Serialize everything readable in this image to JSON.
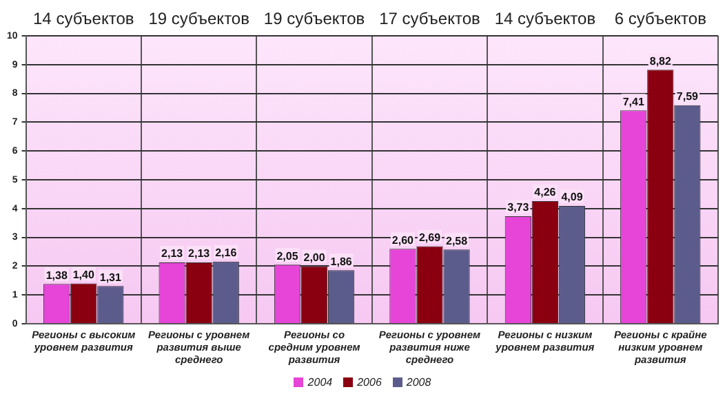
{
  "chart_data": {
    "type": "bar",
    "categories": [
      "Регионы с высоким уровнем развития",
      "Регионы с уровнем развития выше среднего",
      "Регионы со средним уровнем развития",
      "Регионы с уровнем развития ниже среднего",
      "Регионы с низким уровнем развития",
      "Регионы с крайне низким уровнем развития"
    ],
    "series": [
      {
        "name": "2004",
        "color": "#e645d8",
        "values": [
          1.38,
          2.13,
          2.05,
          2.6,
          3.73,
          7.41
        ],
        "value_labels": [
          "1,38",
          "2,13",
          "2,05",
          "2,60",
          "3,73",
          "7,41"
        ]
      },
      {
        "name": "2006",
        "color": "#8b0010",
        "values": [
          1.4,
          2.13,
          2.0,
          2.69,
          4.26,
          8.82
        ],
        "value_labels": [
          "1,40",
          "2,13",
          "2,00",
          "2,69",
          "4,26",
          "8,82"
        ]
      },
      {
        "name": "2008",
        "color": "#5c5c8c",
        "values": [
          1.31,
          2.16,
          1.86,
          2.58,
          4.09,
          7.59
        ],
        "value_labels": [
          "1,31",
          "2,16",
          "1,86",
          "2,58",
          "4,09",
          "7,59"
        ]
      }
    ],
    "annotations": [
      "14 субъектов",
      "19 субъектов",
      "19 субъектов",
      "17 субъектов",
      "14 субъектов",
      "6 субъектов"
    ],
    "ylim": [
      0,
      10
    ],
    "yticks": [
      0,
      1,
      2,
      3,
      4,
      5,
      6,
      7,
      8,
      9,
      10
    ],
    "grid": true,
    "legend": "bottom"
  }
}
